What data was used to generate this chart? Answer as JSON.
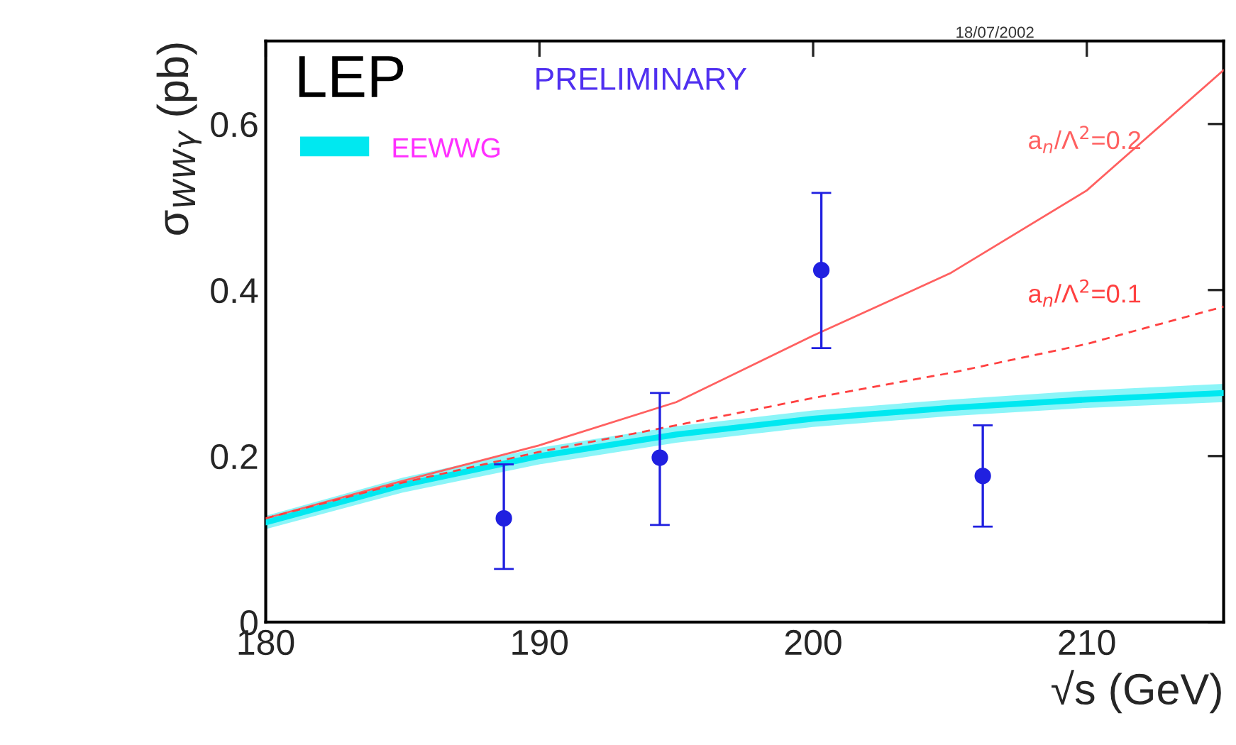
{
  "chart_data": {
    "type": "line",
    "xlabel": "√s (GeV)",
    "ylabel": "σ$_{WWγ}$ (pb)",
    "xlim": [
      180,
      215
    ],
    "ylim": [
      0,
      0.7
    ],
    "xticks": [
      180,
      190,
      200,
      210
    ],
    "yticks": [
      0,
      0.2,
      0.4,
      0.6
    ],
    "grid": false,
    "legend": "top left",
    "annotations": [
      "LEP",
      "PRELIMINARY",
      "18/07/2002"
    ],
    "series": [
      {
        "name": "EEWWG",
        "color": "#00e8f0",
        "line_style": "solid",
        "x": [
          180,
          185,
          190,
          195,
          200,
          205,
          210,
          215
        ],
        "values": [
          0.12,
          0.165,
          0.2,
          0.226,
          0.245,
          0.258,
          0.268,
          0.276
        ],
        "lower": [
          0.112,
          0.156,
          0.19,
          0.216,
          0.235,
          0.248,
          0.258,
          0.265
        ],
        "upper": [
          0.128,
          0.174,
          0.21,
          0.236,
          0.255,
          0.268,
          0.279,
          0.287
        ]
      },
      {
        "name": "a$_{n}$/Λ$^{2}$=0.2",
        "color": "#ff6060",
        "line_style": "solid",
        "x": [
          180,
          185,
          190,
          195,
          200,
          205,
          210,
          215
        ],
        "values": [
          0.125,
          0.17,
          0.213,
          0.265,
          0.345,
          0.42,
          0.52,
          0.665
        ]
      },
      {
        "name": "a$_{n}$/Λ$^{2}$=0.1",
        "color": "#ff4040",
        "line_style": "dashed",
        "x": [
          180,
          185,
          190,
          195,
          200,
          205,
          210,
          215
        ],
        "values": [
          0.125,
          0.168,
          0.205,
          0.237,
          0.27,
          0.3,
          0.335,
          0.38
        ]
      },
      {
        "type": "scatter",
        "color": "#2020e0",
        "marker": "circle",
        "x": [
          188.7,
          194.4,
          200.3,
          206.2
        ],
        "values": [
          0.125,
          0.198,
          0.424,
          0.176
        ],
        "errors": [
          [
            0.064,
            0.19
          ],
          [
            0.117,
            0.276
          ],
          [
            0.33,
            0.517
          ],
          [
            0.115,
            0.237
          ]
        ]
      }
    ]
  }
}
